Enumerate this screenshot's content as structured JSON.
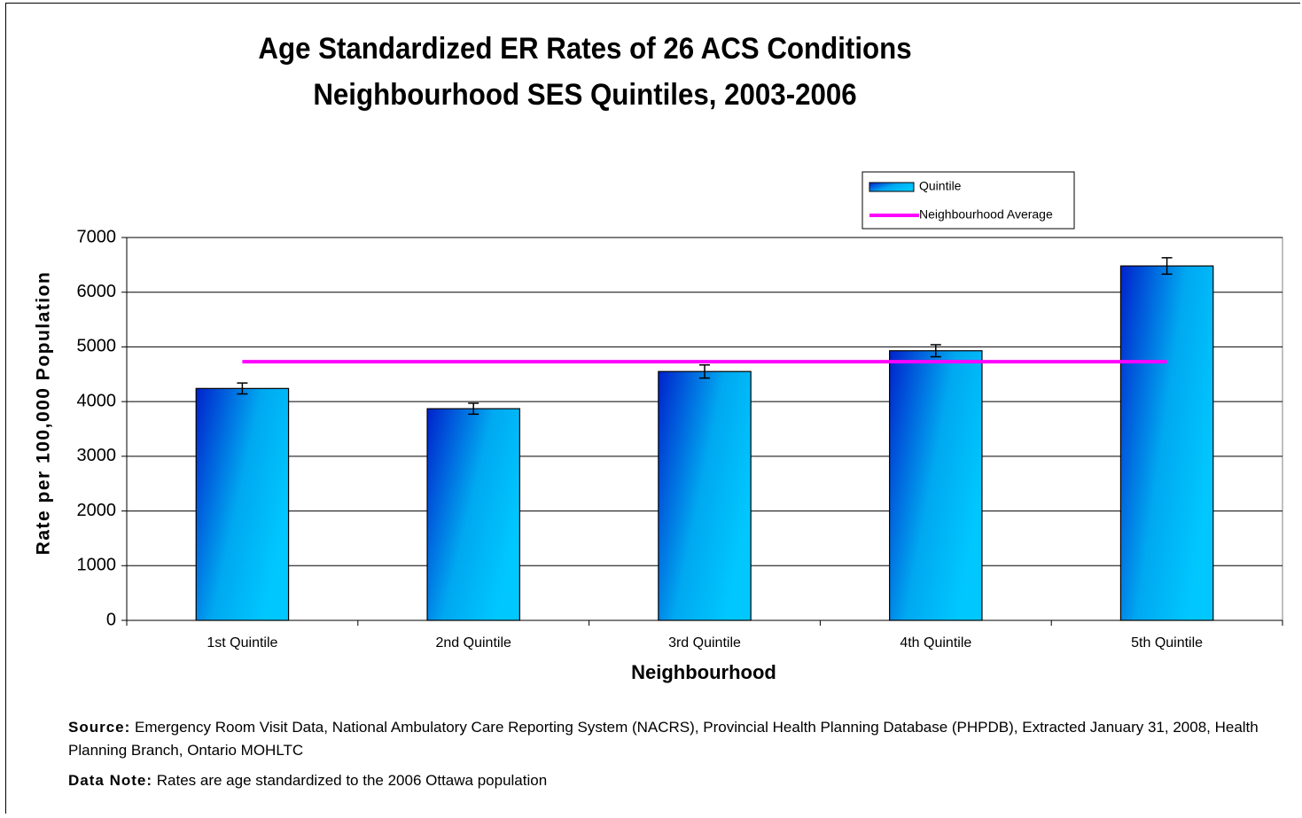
{
  "chart_data": {
    "type": "bar",
    "title": "Age Standardized ER Rates of 26 ACS Conditions",
    "subtitle": "Neighbourhood SES Quintiles, 2003-2006",
    "x_label": "Neighbourhood",
    "y_label": "Rate per 100,000 Population",
    "categories": [
      "1st Quintile",
      "2nd Quintile",
      "3rd Quintile",
      "4th Quintile",
      "5th Quintile"
    ],
    "series": [
      {
        "name": "Quintile",
        "type": "bar",
        "color": "#00bfff",
        "values": [
          4240,
          3870,
          4550,
          4930,
          6480
        ],
        "errors": [
          100,
          100,
          120,
          110,
          150
        ]
      },
      {
        "name": "Neighbourhood Average",
        "type": "line",
        "color": "#ff00ff",
        "values": [
          4730,
          4730,
          4730,
          4730,
          4730
        ]
      }
    ],
    "ylim": [
      0,
      7000
    ],
    "yticks": [
      0,
      1000,
      2000,
      3000,
      4000,
      5000,
      6000,
      7000
    ],
    "grid": true,
    "legend": "top-right"
  },
  "notes": [
    {
      "label": "Source:",
      "text": "Emergency Room Visit Data, National Ambulatory Care Reporting System (NACRS), Provincial Health Planning Database (PHPDB), Extracted January 31, 2008, Health Planning Branch, Ontario MOHLTC"
    },
    {
      "label": "Data Note:",
      "text": "Rates are age standardized to the 2006 Ottawa population"
    }
  ]
}
